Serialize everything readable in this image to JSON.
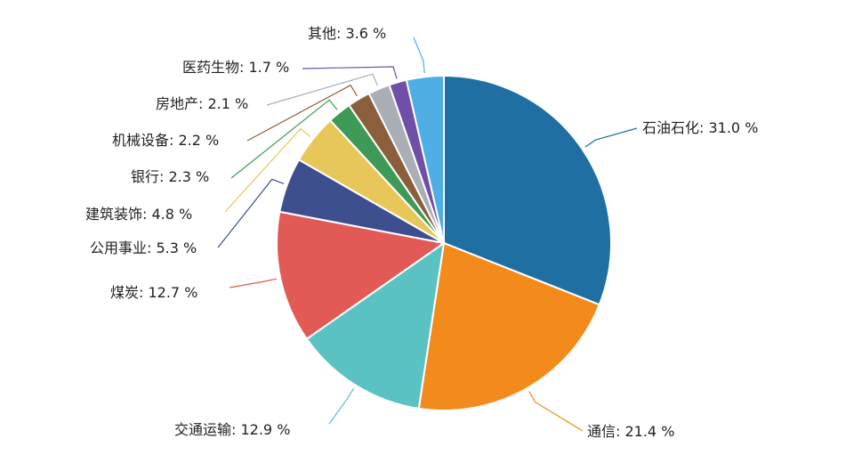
{
  "chart_data": {
    "type": "pie",
    "slices": [
      {
        "name": "石油石化",
        "value": 31.0,
        "label": "石油石化: 31.0 %",
        "color": "#1f6fa3"
      },
      {
        "name": "通信",
        "value": 21.4,
        "label": "通信: 21.4 %",
        "color": "#f28a1c"
      },
      {
        "name": "交通运输",
        "value": 12.9,
        "label": "交通运输: 12.9 %",
        "color": "#5bc2c4"
      },
      {
        "name": "煤炭",
        "value": 12.7,
        "label": "煤炭: 12.7 %",
        "color": "#e15a56"
      },
      {
        "name": "公用事业",
        "value": 5.3,
        "label": "公用事业: 5.3 %",
        "color": "#3d4f8f"
      },
      {
        "name": "建筑装饰",
        "value": 4.8,
        "label": "建筑装饰: 4.8 %",
        "color": "#e8c75a"
      },
      {
        "name": "银行",
        "value": 2.3,
        "label": "银行: 2.3 %",
        "color": "#3f9a58"
      },
      {
        "name": "机械设备",
        "value": 2.2,
        "label": "机械设备: 2.2 %",
        "color": "#8b5e3c"
      },
      {
        "name": "房地产",
        "value": 2.1,
        "label": "房地产: 2.1 %",
        "color": "#a9aeb7"
      },
      {
        "name": "医药生物",
        "value": 1.7,
        "label": "医药生物: 1.7 %",
        "color": "#6f4fa8"
      },
      {
        "name": "其他",
        "value": 3.6,
        "label": "其他: 3.6 %",
        "color": "#4faee3"
      }
    ]
  }
}
